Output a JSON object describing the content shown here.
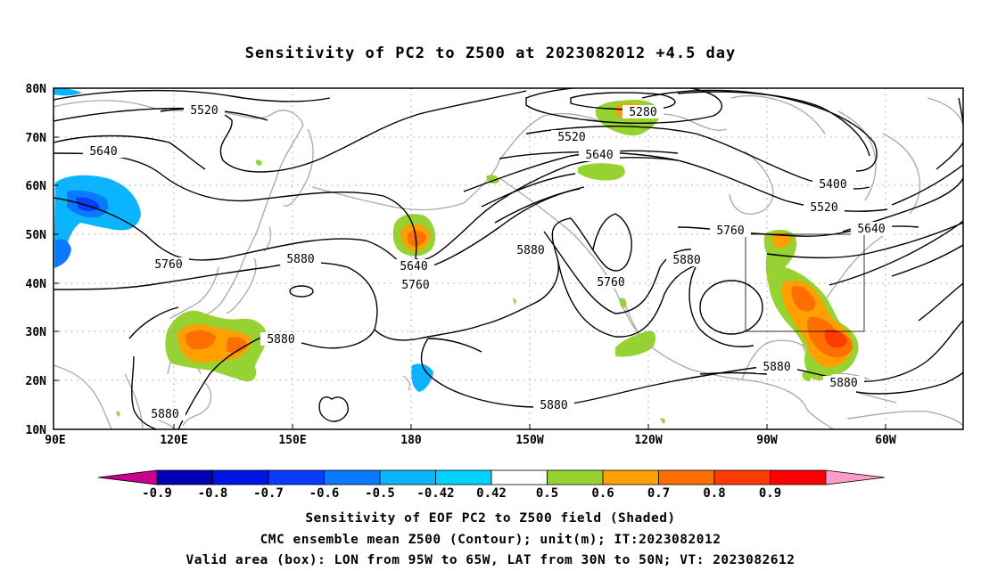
{
  "title": "Sensitivity of PC2 to Z500 at 2023082012 +4.5 day",
  "lat_labels": [
    "80N",
    "70N",
    "60N",
    "50N",
    "40N",
    "30N",
    "20N",
    "10N"
  ],
  "lon_labels": [
    "90E",
    "120E",
    "150E",
    "180",
    "150W",
    "120W",
    "90W",
    "60W"
  ],
  "contour_labels": [
    {
      "text": "5520"
    },
    {
      "text": "5640"
    },
    {
      "text": "5760"
    },
    {
      "text": "5880"
    },
    {
      "text": "5640"
    },
    {
      "text": "5760"
    },
    {
      "text": "5880"
    },
    {
      "text": "5880"
    },
    {
      "text": "5280"
    },
    {
      "text": "5520"
    },
    {
      "text": "5640"
    },
    {
      "text": "5880"
    },
    {
      "text": "5760"
    },
    {
      "text": "5880"
    },
    {
      "text": "5400"
    },
    {
      "text": "5520"
    },
    {
      "text": "5640"
    },
    {
      "text": "5760"
    },
    {
      "text": "5880"
    },
    {
      "text": "5880"
    },
    {
      "text": "5880"
    }
  ],
  "colorbar": {
    "labels": [
      "-0.9",
      "-0.8",
      "-0.7",
      "-0.6",
      "-0.5",
      "-0.42",
      "0.42",
      "0.5",
      "0.6",
      "0.7",
      "0.8",
      "0.9"
    ],
    "colors": [
      "#c8008c",
      "#0000b4",
      "#0014e6",
      "#0a3cff",
      "#0a78ff",
      "#0ab4ff",
      "#00d2ff",
      "#ffffff",
      "#96d232",
      "#ffa000",
      "#ff6e00",
      "#ff3c00",
      "#ff0000",
      "#ff9bc8"
    ]
  },
  "footer": {
    "line1": "Sensitivity of EOF PC2 to Z500 field (Shaded)",
    "line2": "CMC ensemble mean Z500 (Contour); unit(m); IT:2023082012",
    "line3": "Valid area (box): LON from 95W to 65W, LAT from 30N to 50N; VT: 2023082612"
  },
  "colors": {
    "coast": "#a8a8a8",
    "grid": "#a0a0a0",
    "contour": "#000000"
  }
}
